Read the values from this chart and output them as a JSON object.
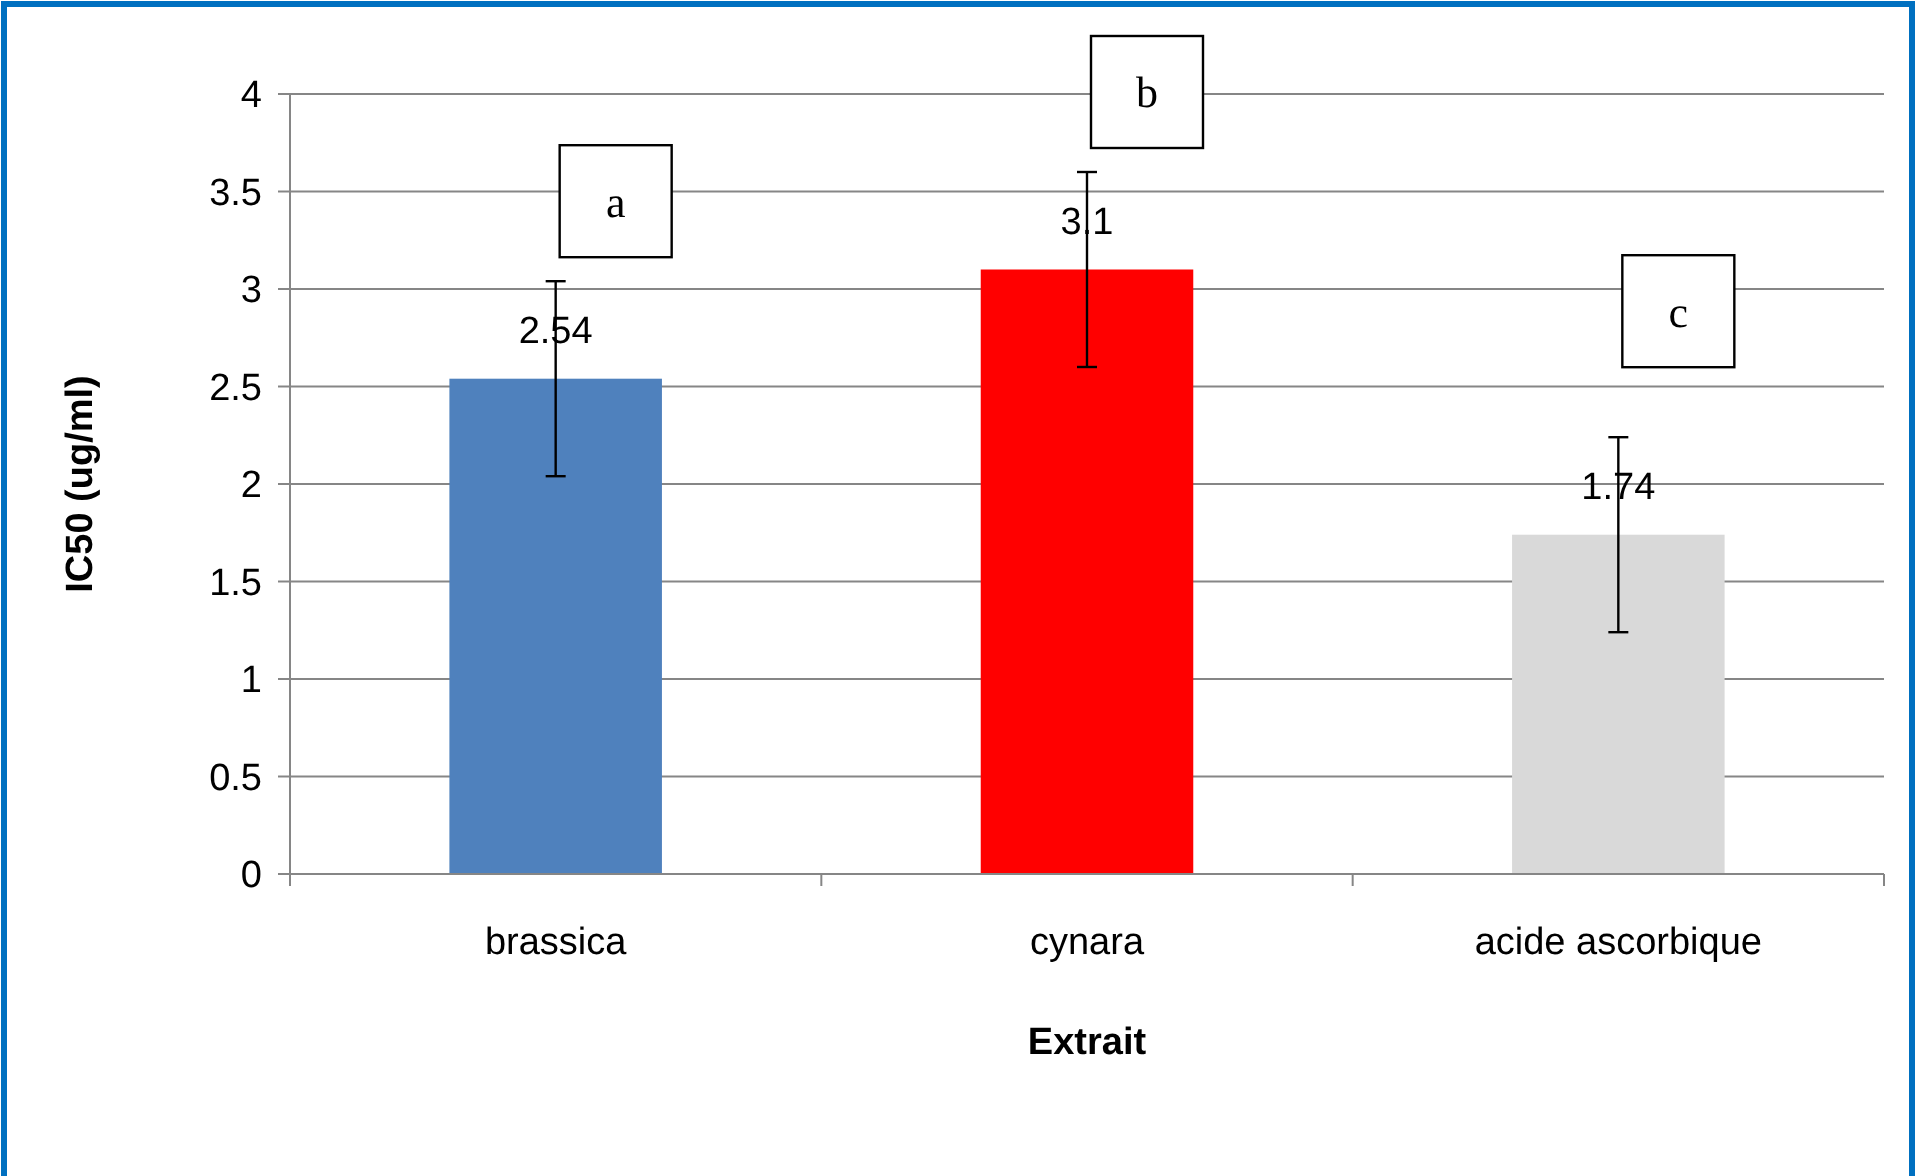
{
  "chart_data": {
    "type": "bar",
    "xlabel": "Extrait",
    "ylabel": "IC50 (ug/ml)",
    "categories": [
      "brassica",
      "cynara",
      "acide ascorbique"
    ],
    "values": [
      2.54,
      3.1,
      1.74
    ],
    "colors": [
      "#4f81bd",
      "#ff0000",
      "#d9d9d9"
    ],
    "errors": [
      0.5,
      0.5,
      0.5
    ],
    "data_labels": true,
    "ylim": [
      0,
      4
    ],
    "yticks": [
      0,
      0.5,
      1,
      1.5,
      2,
      2.5,
      3,
      3.5,
      4
    ],
    "grid": "y",
    "annotations": [
      "a",
      "b",
      "c"
    ]
  }
}
